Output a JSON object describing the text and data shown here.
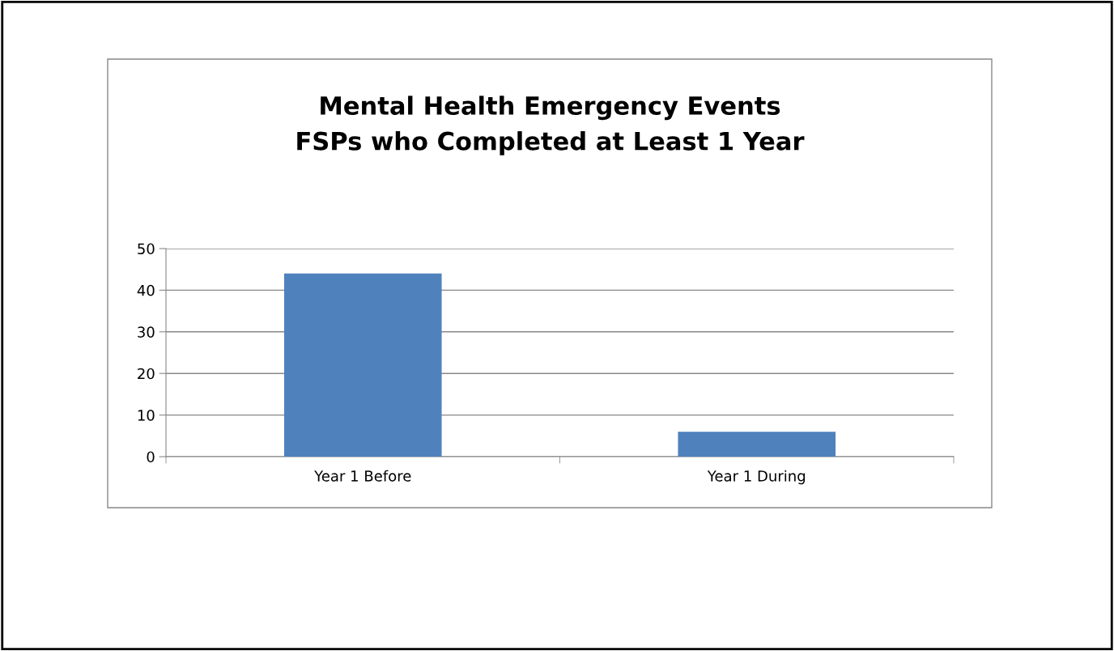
{
  "chart_data": {
    "type": "bar",
    "title": "Mental Health Emergency Events\nFSPs who Completed at Least 1 Year",
    "categories": [
      "Year 1 Before",
      "Year 1 During"
    ],
    "values": [
      44,
      6
    ],
    "color": "#4f81bd",
    "ylim": [
      0,
      50
    ],
    "yticks": [
      0,
      10,
      20,
      30,
      40,
      50
    ],
    "grid": "y",
    "legend": false
  }
}
